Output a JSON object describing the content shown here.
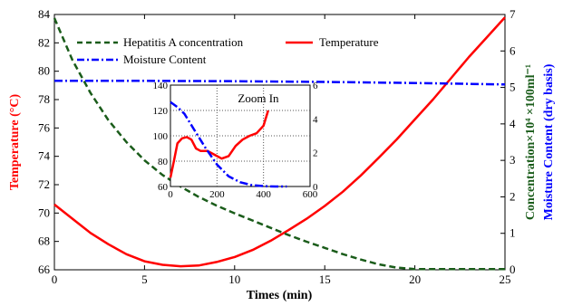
{
  "chart_data": {
    "type": "line",
    "xlabel": "Times (min)",
    "xlim": [
      0,
      25
    ],
    "x_ticks": [
      "0",
      "5",
      "10",
      "15",
      "20",
      "25"
    ],
    "y_left": {
      "label": "Temperature (°C)",
      "ylim": [
        66,
        84
      ],
      "ticks": [
        "66",
        "68",
        "70",
        "72",
        "74",
        "76",
        "78",
        "80",
        "82",
        "84"
      ],
      "color": "#ff0000"
    },
    "y_right": {
      "label_concentration": "Concentration×10⁴ ×100ml⁻¹",
      "label_moisture": "Moisture Content (dry basis)",
      "ylim": [
        0,
        7
      ],
      "ticks": [
        "0",
        "1",
        "2",
        "3",
        "4",
        "5",
        "6",
        "7"
      ],
      "concentration_color": "#1a5c1a",
      "moisture_color": "#0000ff"
    },
    "legend": {
      "placement": "top-left",
      "hepatitis": "Hepatitis A concentration",
      "temperature": "Temperature",
      "moisture": "Moisture Content"
    },
    "series": [
      {
        "name": "Temperature",
        "axis": "left",
        "color": "#ff0000",
        "style": "solid",
        "x": [
          0,
          1,
          2,
          3,
          4,
          5,
          6,
          7,
          8,
          9,
          10,
          11,
          12,
          13,
          14,
          15,
          16,
          17,
          18,
          19,
          20,
          21,
          22,
          23,
          24,
          25
        ],
        "y": [
          70.6,
          69.6,
          68.6,
          67.8,
          67.1,
          66.6,
          66.35,
          66.25,
          66.3,
          66.55,
          66.9,
          67.4,
          68.05,
          68.8,
          69.6,
          70.5,
          71.5,
          72.65,
          73.9,
          75.2,
          76.6,
          78.0,
          79.5,
          81.0,
          82.4,
          83.8
        ]
      },
      {
        "name": "Hepatitis A concentration",
        "axis": "right",
        "color": "#1a5c1a",
        "style": "dashed",
        "x": [
          0,
          1,
          2,
          3,
          4,
          5,
          6,
          7,
          8,
          9,
          10,
          11,
          12,
          13,
          14,
          15,
          16,
          17,
          18,
          19,
          20,
          21,
          22,
          23,
          24,
          25
        ],
        "y": [
          6.9,
          5.75,
          4.85,
          4.1,
          3.5,
          3.0,
          2.6,
          2.28,
          2.0,
          1.76,
          1.55,
          1.35,
          1.15,
          0.95,
          0.77,
          0.6,
          0.43,
          0.28,
          0.15,
          0.06,
          0.02,
          0.02,
          0.02,
          0.02,
          0.02,
          0.02
        ]
      },
      {
        "name": "Moisture Content",
        "axis": "right",
        "color": "#0000ff",
        "style": "dashdot",
        "x": [
          0,
          5,
          10,
          15,
          20,
          25
        ],
        "y": [
          5.18,
          5.18,
          5.17,
          5.15,
          5.12,
          5.08
        ]
      }
    ],
    "inset": {
      "title": "Zoom In",
      "xlim": [
        0,
        600
      ],
      "x_ticks": [
        "0",
        "200",
        "400",
        "600"
      ],
      "ylim_left": [
        60,
        140
      ],
      "y_left_ticks": [
        "60",
        "80",
        "100",
        "120",
        "140"
      ],
      "ylim_right": [
        0,
        6
      ],
      "y_right_ticks": [
        "0",
        "2",
        "4",
        "6"
      ],
      "series": [
        {
          "name": "Temperature",
          "axis": "left",
          "color": "#ff0000",
          "x": [
            0,
            15,
            30,
            50,
            70,
            90,
            110,
            130,
            160,
            190,
            220,
            250,
            280,
            310,
            340,
            370,
            400,
            420
          ],
          "y": [
            67,
            80,
            94,
            98,
            99,
            97,
            90,
            88,
            88,
            85,
            82,
            84,
            92,
            97,
            100,
            102,
            108,
            120
          ]
        },
        {
          "name": "Moisture Content",
          "axis": "right",
          "color": "#0000ff",
          "x": [
            0,
            30,
            60,
            100,
            150,
            200,
            250,
            300,
            350,
            400,
            450,
            500
          ],
          "y": [
            5.0,
            4.7,
            4.3,
            3.4,
            2.3,
            1.3,
            0.6,
            0.25,
            0.08,
            0.02,
            0.0,
            0.0
          ]
        }
      ]
    }
  }
}
